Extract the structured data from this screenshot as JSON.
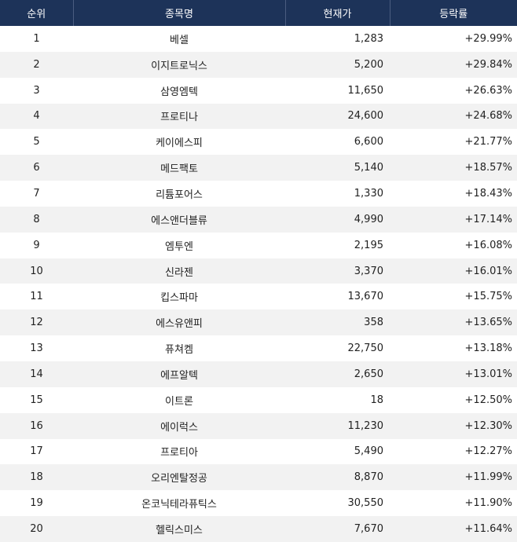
{
  "table": {
    "header": [
      "순위",
      "종목명",
      "현재가",
      "등락률"
    ],
    "rows": [
      [
        "1",
        "베셀",
        "1,283",
        "+29.99%"
      ],
      [
        "2",
        "이지트로닉스",
        "5,200",
        "+29.84%"
      ],
      [
        "3",
        "삼영엠텍",
        "11,650",
        "+26.63%"
      ],
      [
        "4",
        "프로티나",
        "24,600",
        "+24.68%"
      ],
      [
        "5",
        "케이에스피",
        "6,600",
        "+21.77%"
      ],
      [
        "6",
        "메드팩토",
        "5,140",
        "+18.57%"
      ],
      [
        "7",
        "리튬포어스",
        "1,330",
        "+18.43%"
      ],
      [
        "8",
        "에스앤더블류",
        "4,990",
        "+17.14%"
      ],
      [
        "9",
        "엠투엔",
        "2,195",
        "+16.08%"
      ],
      [
        "10",
        "신라젠",
        "3,370",
        "+16.01%"
      ],
      [
        "11",
        "킵스파마",
        "13,670",
        "+15.75%"
      ],
      [
        "12",
        "에스유앤피",
        "358",
        "+13.65%"
      ],
      [
        "13",
        "퓨쳐켐",
        "22,750",
        "+13.18%"
      ],
      [
        "14",
        "에프알텍",
        "2,650",
        "+13.01%"
      ],
      [
        "15",
        "이트론",
        "18",
        "+12.50%"
      ],
      [
        "16",
        "에이럭스",
        "11,230",
        "+12.30%"
      ],
      [
        "17",
        "프로티아",
        "5,490",
        "+12.27%"
      ],
      [
        "18",
        "오리엔탈정공",
        "8,870",
        "+11.99%"
      ],
      [
        "19",
        "온코닉테라퓨틱스",
        "30,550",
        "+11.90%"
      ],
      [
        "20",
        "헬릭스미스",
        "7,670",
        "+11.64%"
      ]
    ]
  }
}
